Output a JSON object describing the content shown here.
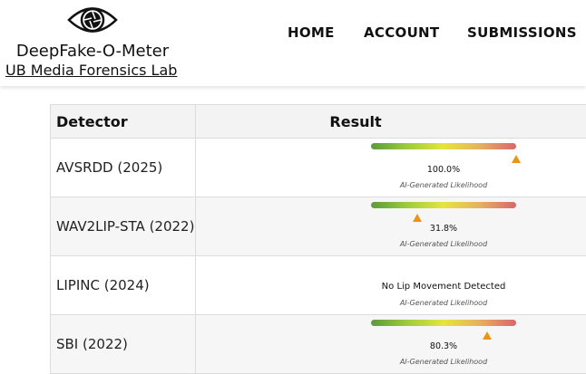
{
  "header": {
    "brand_title": "DeepFake-O-Meter",
    "brand_link": "UB Media Forensics Lab",
    "logo_icon": "eye-aperture-icon",
    "nav": {
      "home": "HOME",
      "account": "ACCOUNT",
      "submissions": "SUBMISSIONS"
    }
  },
  "table": {
    "headers": {
      "detector": "Detector",
      "result": "Result"
    },
    "rows": [
      {
        "detector": "AVSRDD (2025)",
        "score": "100.0%",
        "likelihood": 1.0,
        "caption": "AI-Generated Likelihood"
      },
      {
        "detector": "WAV2LIP-STA (2022)",
        "score": "31.8%",
        "likelihood": 0.318,
        "caption": "AI-Generated Likelihood"
      },
      {
        "detector": "LIPINC (2024)",
        "score": "No Lip Movement Detected",
        "likelihood": null,
        "caption": "AI-Generated Likelihood"
      },
      {
        "detector": "SBI (2022)",
        "score": "80.3%",
        "likelihood": 0.803,
        "caption": "AI-Generated Likelihood"
      }
    ]
  },
  "colors": {
    "gauge_low": "#5c9a3c",
    "gauge_mid": "#e6e53c",
    "gauge_high": "#d9666a",
    "marker": "#e8961a"
  }
}
